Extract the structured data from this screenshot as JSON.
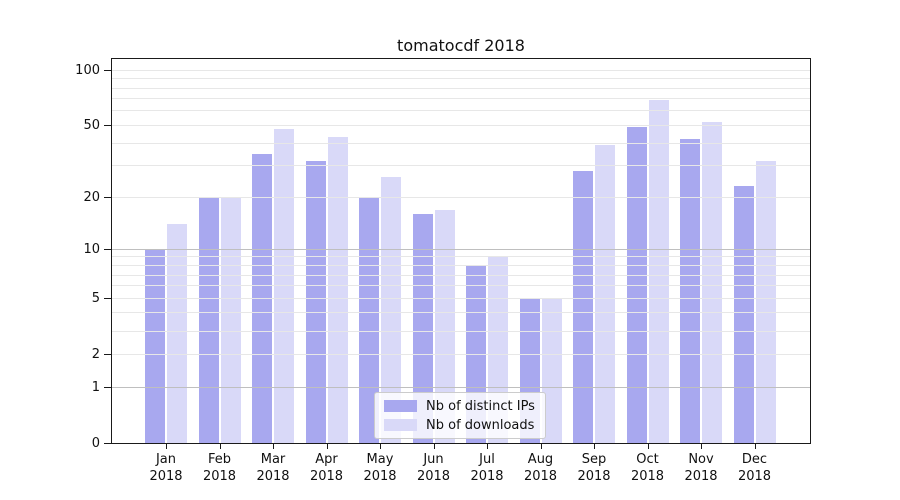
{
  "title": "tomatocdf 2018",
  "chart_data": {
    "type": "bar",
    "title": "tomatocdf 2018",
    "categories": [
      "Jan",
      "Feb",
      "Mar",
      "Apr",
      "May",
      "Jun",
      "Jul",
      "Aug",
      "Sep",
      "Oct",
      "Nov",
      "Dec"
    ],
    "year": "2018",
    "series": [
      {
        "name": "Nb of distinct IPs",
        "color": "#a8a8ef",
        "values": [
          10,
          20,
          35,
          32,
          20,
          16,
          8,
          5,
          28,
          49,
          42,
          23
        ]
      },
      {
        "name": "Nb of downloads",
        "color": "#d9d9f8",
        "values": [
          14,
          20,
          48,
          43,
          26,
          17,
          9,
          5,
          39,
          69,
          52,
          32
        ]
      }
    ],
    "xlabel": "",
    "ylabel": "",
    "yscale": "log1p",
    "yticks": [
      0,
      1,
      2,
      5,
      10,
      20,
      50,
      100
    ],
    "ylim": [
      0,
      115
    ],
    "grid": true,
    "grid_values": {
      "minor": [
        2,
        3,
        4,
        5,
        6,
        7,
        8,
        9,
        20,
        30,
        40,
        50,
        60,
        70,
        80,
        90,
        100
      ],
      "major": [
        1,
        10
      ]
    },
    "legend_position": "lower center"
  },
  "colors": {
    "bar_dark": "#a8a8ef",
    "bar_light": "#d9d9f8",
    "grid_minor": "#e7e7e7",
    "grid_major": "#bfbfbf",
    "spine": "#1a1a1a",
    "text": "#111111"
  }
}
